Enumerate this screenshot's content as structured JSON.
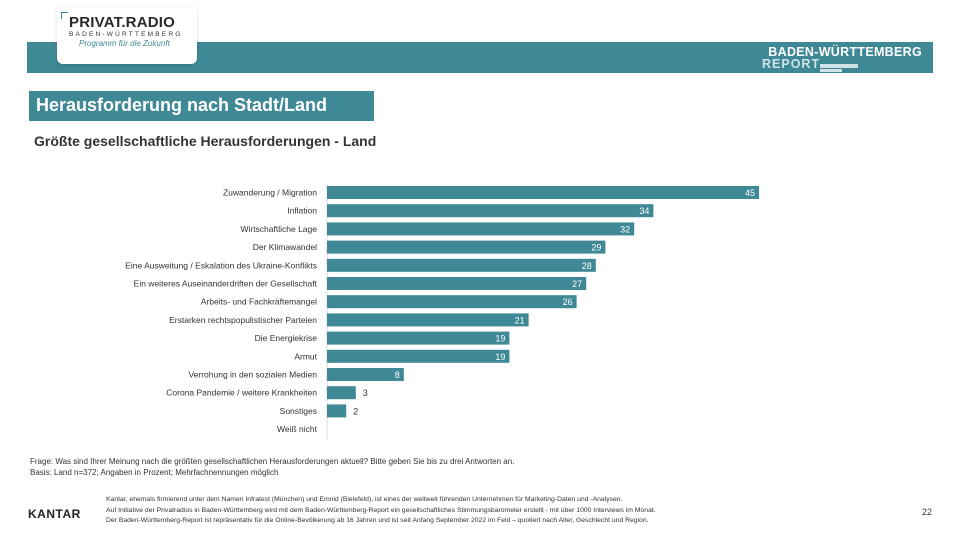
{
  "logo": {
    "title": "PRIVAT.RADIO",
    "sub": "BADEN-WÜRTTEMBERG",
    "tagline": "Programm für die Zukunft"
  },
  "header": {
    "bw_title": "BADEN-WÜRTTEMBERG",
    "bw_report": "REPORT"
  },
  "section_title": "Herausforderung nach Stadt/Land",
  "subtitle": "Größte gesellschaftliche Herausforderungen - Land",
  "colors": {
    "accent": "#3f8896"
  },
  "chart_data": {
    "type": "bar",
    "orientation": "horizontal",
    "title": "Größte gesellschaftliche Herausforderungen - Land",
    "categories": [
      "Zuwanderung / Migration",
      "Inflation",
      "Wirtschaftliche Lage",
      "Der Klimawandel",
      "Eine Ausweitung / Eskalation des Ukraine-Konflikts",
      "Ein weiteres Auseinanderdriften der Gesellschaft",
      "Arbeits- und Fachkräftemangel",
      "Erstarken rechtspopulistischer Parteien",
      "Die Energiekrise",
      "Armut",
      "Verrohung in den sozialen Medien",
      "Corona Pandemie / weitere Krankheiten",
      "Sonstiges",
      "Weiß nicht"
    ],
    "values": [
      45,
      34,
      32,
      29,
      28,
      27,
      26,
      21,
      19,
      19,
      8,
      3,
      2,
      0
    ],
    "value_labels": [
      "45",
      "34",
      "32",
      "29",
      "28",
      "27",
      "26",
      "21",
      "19",
      "19",
      "8",
      "3",
      "2",
      ""
    ],
    "xlim": [
      0,
      50
    ],
    "grid": false,
    "legend": "none"
  },
  "footnotes": {
    "question": "Frage: Was sind Ihrer Meinung nach die größten gesellschaftlichen Herausforderungen aktuell? Bitte geben Sie bis zu drei Antworten an.",
    "basis": "Basis: Land n=372; Angaben in Prozent; Mehrfachnennungen möglich"
  },
  "footer": {
    "brand": "KANTAR",
    "line1": "Kantar, ehemals firmierend unter dem Namen Infratest (München) und Emnid (Bielefeld), ist eines der weltweit führenden Unternehmen für Marketing-Daten und -Analysen.",
    "line2": "Auf Initiative der Privatradios in Baden-Württemberg wird mit dem Baden-Württemberg-Report ein gesellschaftliches Stimmungsbarometer erstellt - mit über 1000 Interviews im Monat.",
    "line3": "Der Baden-Württemberg-Report ist repräsentativ für die Online-Bevölkerung ab 16 Jahren und ist seit Anfang September 2022 im Feld – quotiert nach Alter, Geschlecht und Region.",
    "page": "22"
  }
}
